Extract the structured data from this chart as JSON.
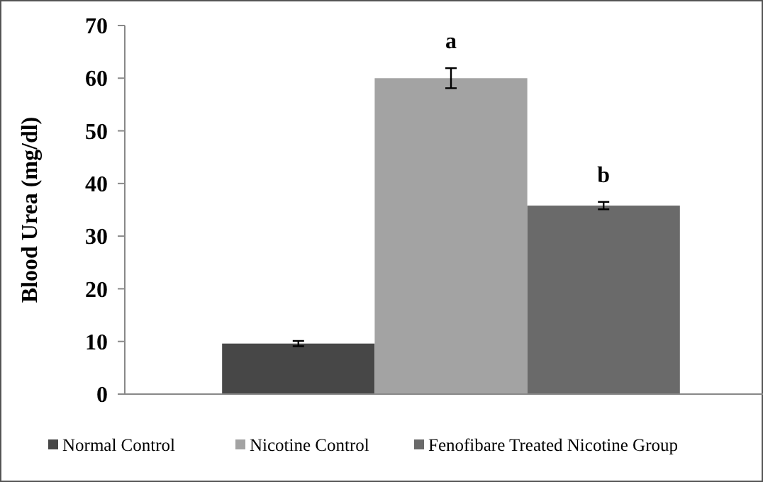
{
  "chart_data": {
    "type": "bar",
    "ylabel": "Blood Urea  (mg/dl)",
    "categories": [
      null
    ],
    "series": [
      {
        "name": "Normal Control",
        "color": "#474747",
        "values": [
          9.6
        ],
        "errors": [
          0.5
        ]
      },
      {
        "name": "Nicotine Control",
        "color": "#a3a3a3",
        "values": [
          60
        ],
        "errors": [
          1.9
        ]
      },
      {
        "name": "Fenofibare Treated Nicotine Group",
        "color": "#6a6a6a",
        "values": [
          35.8
        ],
        "errors": [
          0.7
        ]
      }
    ],
    "annotations": [
      "a",
      "b"
    ],
    "ylim": [
      0,
      70
    ],
    "yticks": [
      0,
      10,
      20,
      30,
      40,
      50,
      60,
      70
    ],
    "grid": false,
    "legend": "bottom"
  }
}
